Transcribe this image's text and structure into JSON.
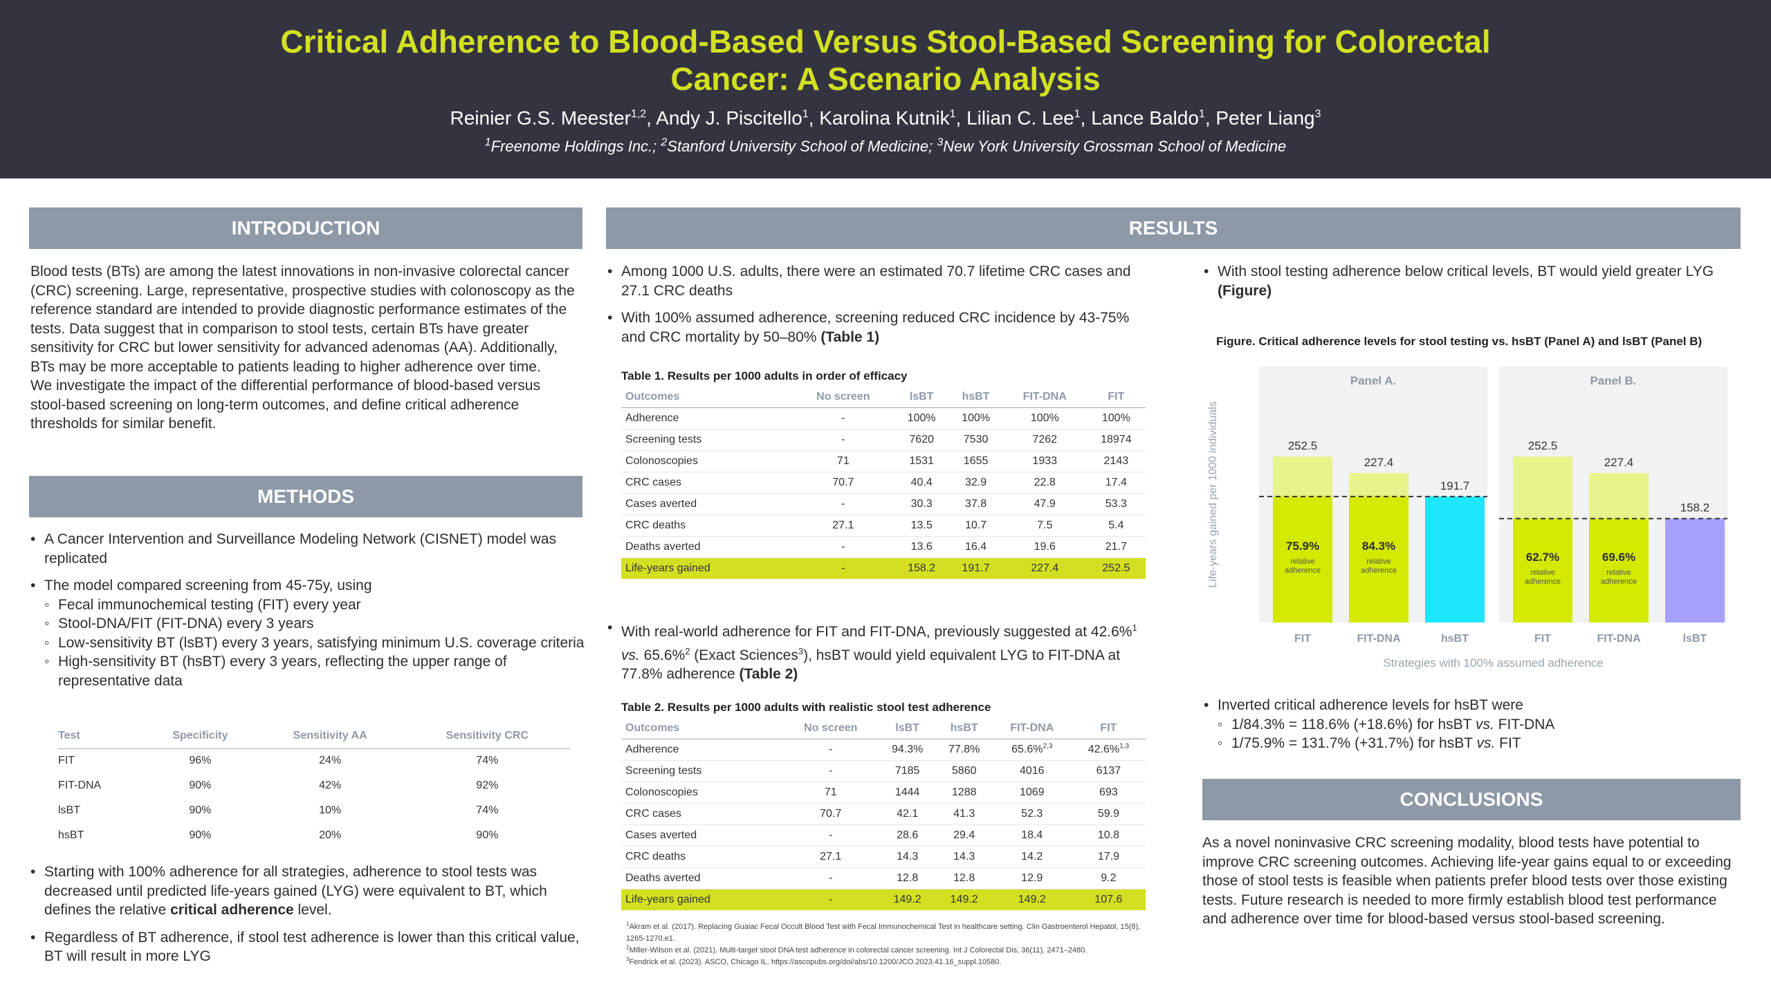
{
  "header": {
    "title": "Critical Adherence to Blood-Based Versus Stool-Based Screening for Colorectal Cancer: A Scenario Analysis",
    "authors": [
      {
        "name": "Reinier G.S. Meester",
        "aff": "1,2",
        "sep": ", "
      },
      {
        "name": "Andy J. Piscitello",
        "aff": "1",
        "sep": ", "
      },
      {
        "name": "Karolina Kutnik",
        "aff": "1",
        "sep": ", "
      },
      {
        "name": "Lilian C. Lee",
        "aff": "1",
        "sep": ", "
      },
      {
        "name": "Lance Baldo",
        "aff": "1",
        "sep": ", "
      },
      {
        "name": "Peter Liang",
        "aff": "3",
        "sep": ""
      }
    ],
    "affiliations": [
      {
        "num": "1",
        "text": "Freenome Holdings Inc.; "
      },
      {
        "num": "2",
        "text": "Stanford University School of Medicine; "
      },
      {
        "num": "3",
        "text": "New York University Grossman School of Medicine"
      }
    ]
  },
  "introduction": {
    "heading": "INTRODUCTION",
    "p1": "Blood tests (BTs) are among the latest innovations in non-invasive colorectal cancer (CRC) screening. Large, representative, prospective studies with colonoscopy as the reference standard are intended to provide diagnostic performance estimates of the tests. Data suggest that in comparison to stool tests, certain BTs have greater sensitivity for CRC but lower sensitivity for advanced adenomas (AA). Additionally, BTs may be more acceptable to patients leading to higher adherence over time.",
    "p2": "We investigate the impact of the differential performance of blood-based versus stool-based screening on long-term outcomes, and define critical adherence thresholds for similar benefit."
  },
  "methods": {
    "heading": "METHODS",
    "b1": "A Cancer Intervention and Surveillance Modeling Network (CISNET) model was replicated",
    "b2": "The model compared screening from 45-75y, using",
    "sub": [
      "Fecal immunochemical testing (FIT) every year",
      "Stool-DNA/FIT (FIT-DNA) every 3 years",
      "Low-sensitivity BT (lsBT) every 3 years, satisfying minimum U.S. coverage criteria",
      "High-sensitivity BT (hsBT) every 3 years, reflecting the upper range of representative data"
    ],
    "table": {
      "headers": [
        "Test",
        "Specificity",
        "Sensitivity AA",
        "Sensitivity CRC"
      ],
      "rows": [
        [
          "FIT",
          "96%",
          "24%",
          "74%"
        ],
        [
          "FIT-DNA",
          "90%",
          "42%",
          "92%"
        ],
        [
          "lsBT",
          "90%",
          "10%",
          "74%"
        ],
        [
          "hsBT",
          "90%",
          "20%",
          "90%"
        ]
      ]
    },
    "b3_pre": "Starting with 100% adherence for all strategies, adherence to stool tests was decreased until predicted life-years gained (LYG) were equivalent to BT, which defines the relative ",
    "b3_bold": "critical adherence",
    "b3_post": " level.",
    "b4": "Regardless of BT adherence, if stool test adherence is lower than this critical value, BT will result in more LYG"
  },
  "results": {
    "heading": "RESULTS",
    "r1": "Among 1000 U.S. adults, there were an estimated 70.7 lifetime CRC cases and 27.1 CRC deaths",
    "r2_pre": "With 100% assumed adherence, screening reduced CRC incidence by 43-75% and CRC mortality by 50–80% ",
    "r2_bold": "(Table 1)",
    "table1": {
      "title": "Table 1. Results per 1000 adults in order of efficacy",
      "headers": [
        "Outcomes",
        "No screen",
        "lsBT",
        "hsBT",
        "FIT-DNA",
        "FIT"
      ],
      "rows": [
        [
          "Adherence",
          "-",
          "100%",
          "100%",
          "100%",
          "100%"
        ],
        [
          "Screening tests",
          "-",
          "7620",
          "7530",
          "7262",
          "18974"
        ],
        [
          "Colonoscopies",
          "71",
          "1531",
          "1655",
          "1933",
          "2143"
        ],
        [
          "CRC cases",
          "70.7",
          "40.4",
          "32.9",
          "22.8",
          "17.4"
        ],
        [
          "Cases averted",
          "-",
          "30.3",
          "37.8",
          "47.9",
          "53.3"
        ],
        [
          "CRC deaths",
          "27.1",
          "13.5",
          "10.7",
          "7.5",
          "5.4"
        ],
        [
          "Deaths averted",
          "-",
          "13.6",
          "16.4",
          "19.6",
          "21.7"
        ],
        [
          "Life-years gained",
          "-",
          "158.2",
          "191.7",
          "227.4",
          "252.5"
        ]
      ]
    },
    "r3_a": "With real-world adherence for FIT and FIT-DNA, previously suggested at 42.6%",
    "r3_s1": "1",
    "r3_b": " vs. ",
    "r3_c": "65.6%",
    "r3_s2": "2",
    "r3_d": " (Exact Sciences",
    "r3_s3": "3",
    "r3_e": "), hsBT would yield equivalent LYG to FIT-DNA at 77.8% adherence ",
    "r3_bold": "(Table 2)",
    "table2": {
      "title": "Table 2. Results per 1000 adults with realistic stool test adherence",
      "headers": [
        "Outcomes",
        "No screen",
        "lsBT",
        "hsBT",
        "FIT-DNA",
        "FIT"
      ],
      "rows": [
        [
          "Adherence",
          "-",
          "94.3%",
          "77.8%",
          "65.6%",
          "42.6%"
        ],
        [
          "Screening tests",
          "-",
          "7185",
          "5860",
          "4016",
          "6137"
        ],
        [
          "Colonoscopies",
          "71",
          "1444",
          "1288",
          "1069",
          "693"
        ],
        [
          "CRC cases",
          "70.7",
          "42.1",
          "41.3",
          "52.3",
          "59.9"
        ],
        [
          "Cases averted",
          "-",
          "28.6",
          "29.4",
          "18.4",
          "10.8"
        ],
        [
          "CRC deaths",
          "27.1",
          "14.3",
          "14.3",
          "14.2",
          "17.9"
        ],
        [
          "Deaths averted",
          "-",
          "12.8",
          "12.8",
          "12.9",
          "9.2"
        ],
        [
          "Life-years gained",
          "-",
          "149.2",
          "149.2",
          "149.2",
          "107.6"
        ]
      ],
      "adherence_sups": [
        "",
        "",
        "",
        "",
        "2,3",
        "1,3"
      ]
    },
    "refs": [
      {
        "num": "1",
        "text": "Akram et al. (2017). Replacing Guaiac Fecal Occult Blood Test with Fecal Immunochemical Test in healthcare setting. Clin Gastroenterol Hepatol, 15(8), 1265-1270.e1."
      },
      {
        "num": "2",
        "text": "Miller-Wilson et al. (2021). Multi-target stool DNA test adherence in colorectal cancer screening. Int J Colorectal Dis, 36(11), 2471–2480."
      },
      {
        "num": "3",
        "text": "Fendrick et al. (2023). ASCO, Chicago IL. https://ascopubs.org/doi/abs/10.1200/JCO.2023.41.16_suppl.10580."
      }
    ],
    "r4_pre": "With stool testing adherence below critical levels, BT would yield greater LYG ",
    "r4_bold": "(Figure)",
    "figure_title": "Figure. Critical adherence levels for stool testing vs. hsBT (Panel A) and lsBT (Panel B)",
    "r5": "Inverted critical adherence levels for hsBT were",
    "r5_sub": [
      {
        "a": "1/84.3% = 118.6% (+18.6%) for hsBT ",
        "vs": "vs.",
        "b": " FIT-DNA"
      },
      {
        "a": "1/75.9% = 131.7% (+31.7%) for hsBT ",
        "vs": "vs.",
        "b": " FIT"
      }
    ]
  },
  "chart_data": {
    "type": "bar",
    "ylabel": "Life-years gained per 1000 individuals",
    "xlabel": "Strategies with 100% assumed adherence",
    "ylim": [
      0,
      300
    ],
    "colors": {
      "stool_light": "#e7f38b",
      "stool_dark": "#d3e900",
      "hsBT": "#1ee6fa",
      "lsBT": "#a6a0ff",
      "panel_bg": "#f2f2f2"
    },
    "relative_label": "relative adherence",
    "panels": [
      {
        "name": "Panel A.",
        "categories": [
          "FIT",
          "FIT-DNA",
          "hsBT"
        ],
        "values": [
          252.5,
          227.4,
          191.7
        ],
        "threshold": 191.7,
        "relative_adherence": [
          "75.9%",
          "84.3%",
          ""
        ],
        "bt_color": "#1ee6fa"
      },
      {
        "name": "Panel B.",
        "categories": [
          "FIT",
          "FIT-DNA",
          "lsBT"
        ],
        "values": [
          252.5,
          227.4,
          158.2
        ],
        "threshold": 158.2,
        "relative_adherence": [
          "62.7%",
          "69.6%",
          ""
        ],
        "bt_color": "#a6a0ff"
      }
    ]
  },
  "conclusions": {
    "heading": "CONCLUSIONS",
    "text": "As a novel noninvasive CRC screening modality, blood tests have potential to improve CRC screening outcomes. Achieving life-year gains equal to or exceeding those of stool tests is feasible when patients prefer blood tests over those existing tests. Future research is needed to more firmly establish blood test performance and adherence over time for blood-based versus stool-based screening."
  }
}
